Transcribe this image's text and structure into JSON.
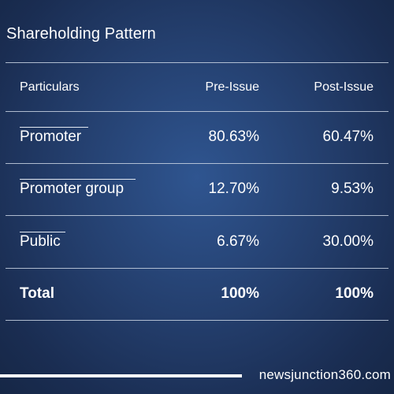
{
  "title": "Shareholding Pattern",
  "table": {
    "headers": {
      "particulars": "Particulars",
      "pre_issue": "Pre-Issue",
      "post_issue": "Post-Issue"
    },
    "rows": [
      {
        "particulars": "Promoter",
        "pre_issue": "80.63%",
        "post_issue": "60.47%"
      },
      {
        "particulars": "Promoter group",
        "pre_issue": "12.70%",
        "post_issue": "9.53%"
      },
      {
        "particulars": "Public",
        "pre_issue": "6.67%",
        "post_issue": "30.00%"
      }
    ],
    "total": {
      "particulars": "Total",
      "pre_issue": "100%",
      "post_issue": "100%"
    }
  },
  "watermark": "newsjunction360.com",
  "colors": {
    "background": "#243f6e",
    "text": "#ffffff",
    "rule": "#c9d3e3"
  }
}
